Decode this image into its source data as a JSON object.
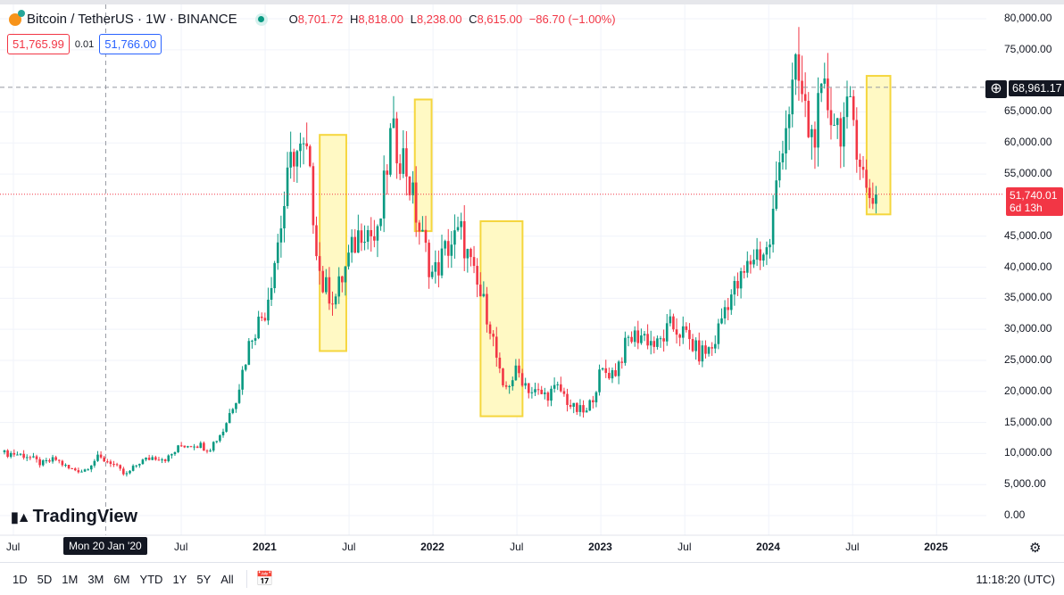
{
  "header": {
    "symbol": "Bitcoin / TetherUS · 1W · BINANCE",
    "ohlc": {
      "o_label": "O",
      "o": "8,701.72",
      "h_label": "H",
      "h": "8,818.00",
      "l_label": "L",
      "l": "8,238.00",
      "c_label": "C",
      "c": "8,615.00",
      "change": "−86.70 (−1.00%)"
    },
    "bid": "51,765.99",
    "spread": "0.01",
    "ask": "51,766.00"
  },
  "price_axis": {
    "ticks": [
      "80,000.00",
      "75,000.00",
      "65,000.00",
      "60,000.00",
      "55,000.00",
      "45,000.00",
      "40,000.00",
      "35,000.00",
      "30,000.00",
      "25,000.00",
      "20,000.00",
      "15,000.00",
      "10,000.00",
      "5,000.00",
      "0.00"
    ],
    "tick_values": [
      80000,
      75000,
      65000,
      60000,
      55000,
      45000,
      40000,
      35000,
      30000,
      25000,
      20000,
      15000,
      10000,
      5000,
      0
    ],
    "crosshair_price": "68,961.17",
    "crosshair_value": 68961.17,
    "last_price": "51,740.01",
    "last_value": 51740.01,
    "countdown": "6d 13h"
  },
  "time_axis": {
    "labels": [
      "Jul",
      "Jul",
      "2021",
      "Jul",
      "2022",
      "Jul",
      "2023",
      "Jul",
      "2024",
      "Jul",
      "2025"
    ],
    "label_months": [
      0,
      12,
      18,
      24,
      30,
      36,
      42,
      48,
      54,
      60,
      66
    ],
    "crosshair_date": "Mon 20 Jan '20",
    "crosshair_month": 6.6
  },
  "footer": {
    "ranges": [
      "1D",
      "5D",
      "1M",
      "3M",
      "6M",
      "YTD",
      "1Y",
      "5Y",
      "All"
    ],
    "clock": "11:18:20 (UTC)"
  },
  "logo": "TradingView",
  "colors": {
    "up": "#089981",
    "down": "#f23645",
    "highlight_fill": "#fff9c4",
    "highlight_stroke": "#f5d63d"
  },
  "chart_data": {
    "type": "candlestick",
    "title": "Bitcoin / TetherUS 1W",
    "ylim": [
      0,
      80000
    ],
    "x_unit": "months since Jul 2019",
    "monthly_closes": [
      10000,
      9600,
      8300,
      9100,
      7500,
      7200,
      9300,
      8600,
      6400,
      8600,
      9450,
      9150,
      11300,
      11600,
      10800,
      13800,
      19700,
      29000,
      33100,
      45200,
      58800,
      57700,
      37300,
      35000,
      41500,
      47100,
      43800,
      61300,
      57000,
      46300,
      38500,
      43200,
      45500,
      37700,
      31800,
      19900,
      23300,
      20000,
      19400,
      20500,
      17200,
      16500,
      23100,
      23100,
      28500,
      29200,
      27200,
      30500,
      29200,
      26000,
      27000,
      34600,
      37700,
      42300,
      42600,
      61100,
      71300,
      60600,
      67500,
      62700,
      64600,
      51740
    ],
    "highlight_boxes": [
      {
        "from_month": 21.9,
        "to_month": 23.8,
        "low": 26500,
        "high": 61300
      },
      {
        "from_month": 28.7,
        "to_month": 29.9,
        "low": 45800,
        "high": 67000
      },
      {
        "from_month": 33.4,
        "to_month": 36.4,
        "low": 16000,
        "high": 47400
      },
      {
        "from_month": 61,
        "to_month": 62.7,
        "low": 48500,
        "high": 70800
      }
    ]
  }
}
